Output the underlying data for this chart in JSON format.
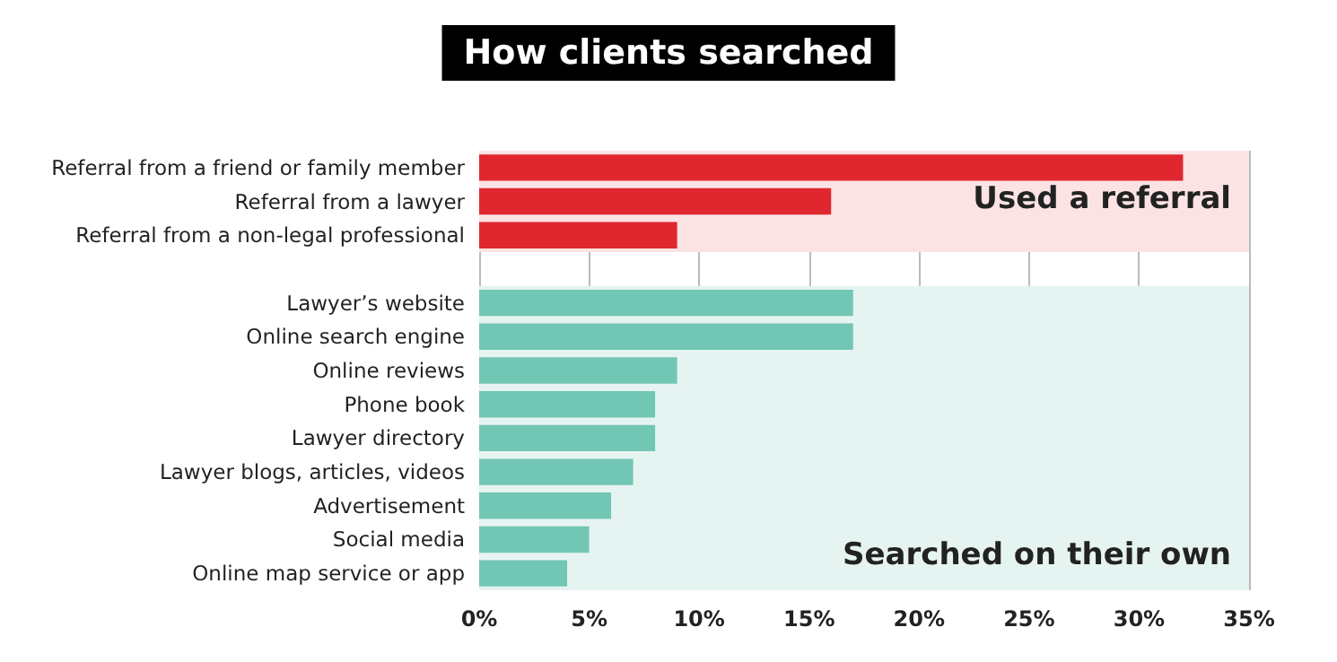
{
  "chart_data": {
    "type": "bar",
    "orientation": "horizontal",
    "title": "How clients searched",
    "categories": [
      "Referral from a friend or family member",
      "Referral from a lawyer",
      "Referral from a non-legal professional",
      null,
      "Lawyer’s website",
      "Online search engine",
      "Online reviews",
      "Phone book",
      "Lawyer directory",
      "Lawyer blogs, articles, videos",
      "Advertisement",
      "Social media",
      "Online map service or app"
    ],
    "values": [
      32,
      16,
      9,
      null,
      17,
      17,
      9,
      8,
      8,
      7,
      6,
      5,
      4
    ],
    "colors": [
      "#e0262f",
      "#e0262f",
      "#e0262f",
      null,
      "#72c6b4",
      "#72c6b4",
      "#72c6b4",
      "#72c6b4",
      "#72c6b4",
      "#72c6b4",
      "#72c6b4",
      "#72c6b4",
      "#72c6b4"
    ],
    "xlim": [
      0,
      35
    ],
    "xticks": [
      {
        "value": 0,
        "label": "0%"
      },
      {
        "value": 5,
        "label": "5%"
      },
      {
        "value": 10,
        "label": "10%"
      },
      {
        "value": 15,
        "label": "15%"
      },
      {
        "value": 20,
        "label": "20%"
      },
      {
        "value": 25,
        "label": "25%"
      },
      {
        "value": 30,
        "label": "30%"
      },
      {
        "value": 35,
        "label": "35%"
      }
    ],
    "bands": [
      {
        "axis": "y",
        "from": "Referral from a friend or family member",
        "to": "Referral from a non-legal professional",
        "label": "Used a referral",
        "color": "#fbe3e4"
      },
      {
        "axis": "y",
        "from": "Lawyer’s website",
        "to": "Online map service or app",
        "label": "Searched on their own",
        "color": "#e6f4f1"
      }
    ],
    "grid": "x"
  }
}
